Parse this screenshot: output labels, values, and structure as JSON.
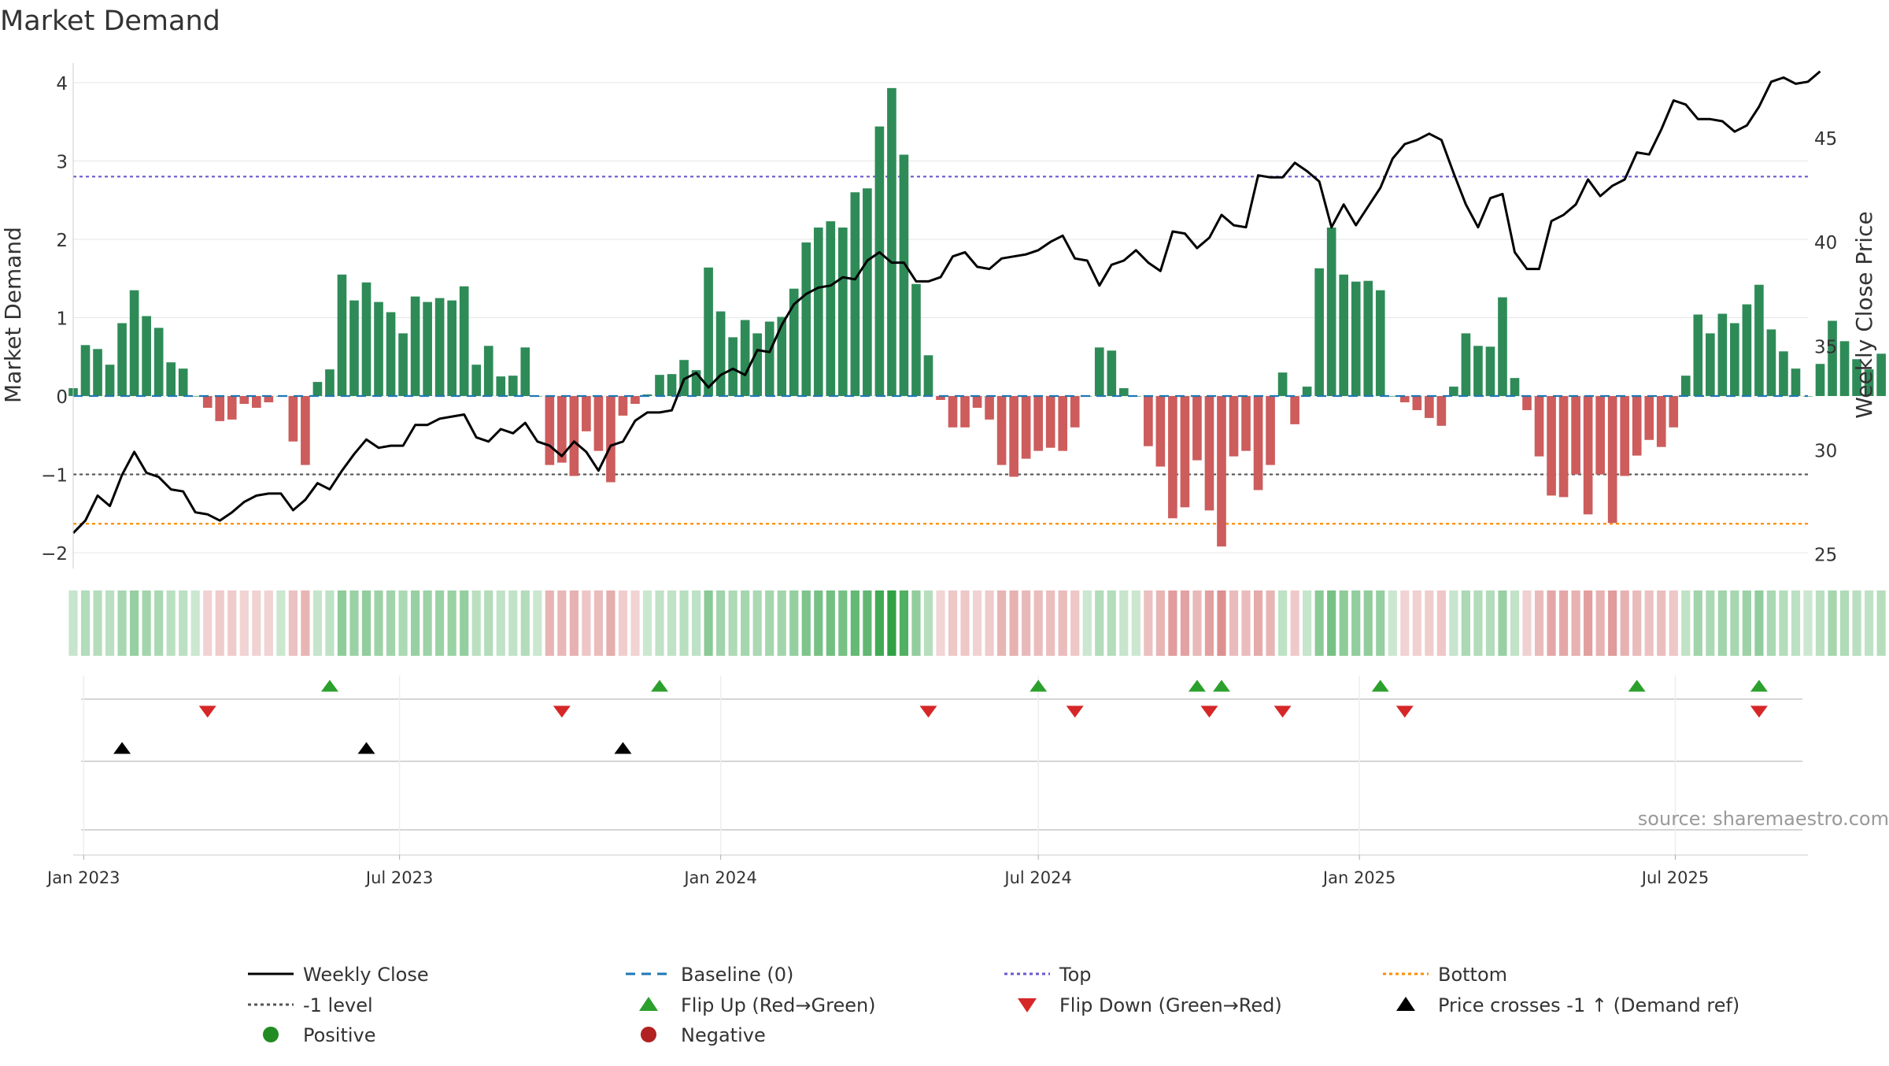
{
  "chart_data": {
    "type": "bar",
    "title": "Market Demand",
    "ylabel_left": "Market Demand",
    "ylabel_right": "Weekly Close Price",
    "source": "source: sharemaestro.com",
    "x_start": "2022-12-26",
    "x_end": "2025-09-15",
    "week_start": "2022-12-26",
    "ylim_left": [
      -2.2,
      4.25
    ],
    "ylim_right": [
      24.3,
      48.6
    ],
    "yticks_left": [
      {
        "v": -2,
        "label": "−2"
      },
      {
        "v": -1,
        "label": "−1"
      },
      {
        "v": 0,
        "label": "0"
      },
      {
        "v": 1,
        "label": "1"
      },
      {
        "v": 2,
        "label": "2"
      },
      {
        "v": 3,
        "label": "3"
      },
      {
        "v": 4,
        "label": "4"
      }
    ],
    "yticks_right": [
      {
        "v": 25,
        "label": "25"
      },
      {
        "v": 30,
        "label": "30"
      },
      {
        "v": 35,
        "label": "35"
      },
      {
        "v": 40,
        "label": "40"
      },
      {
        "v": 45,
        "label": "45"
      }
    ],
    "xticks": [
      {
        "date": "2023-01-01",
        "label": "Jan 2023"
      },
      {
        "date": "2023-07-01",
        "label": "Jul 2023"
      },
      {
        "date": "2024-01-01",
        "label": "Jan 2024"
      },
      {
        "date": "2024-07-01",
        "label": "Jul 2024"
      },
      {
        "date": "2025-01-01",
        "label": "Jan 2025"
      },
      {
        "date": "2025-07-01",
        "label": "Jul 2025"
      }
    ],
    "reference_lines": {
      "baseline": 0,
      "minus_one": -1,
      "top": 2.8,
      "bottom": -1.63
    },
    "colors": {
      "positive_bar": "#2e8b57",
      "negative_bar": "#cd5c5c",
      "close_line": "#000000",
      "baseline": "#1f77b4",
      "minus_one": "#555555",
      "top": "#6a5acd",
      "bottom": "#ff8c00",
      "flip_up": "#2ca02c",
      "flip_down": "#d62728",
      "cross": "#000000",
      "legend_positive": "#228b22",
      "legend_negative": "#b22222",
      "grid": "#e6e6e6"
    },
    "demand": [
      0.1,
      0.65,
      0.6,
      0.4,
      0.93,
      1.35,
      1.02,
      0.87,
      0.43,
      0.35,
      0.0,
      -0.15,
      -0.32,
      -0.3,
      -0.1,
      -0.15,
      -0.08,
      0.0,
      -0.58,
      -0.88,
      0.18,
      0.34,
      1.55,
      1.22,
      1.45,
      1.2,
      1.07,
      0.8,
      1.27,
      1.2,
      1.25,
      1.22,
      1.4,
      0.4,
      0.64,
      0.25,
      0.26,
      0.62,
      0.0,
      -0.88,
      -0.85,
      -1.02,
      -0.45,
      -0.7,
      -1.1,
      -0.25,
      -0.1,
      0.02,
      0.27,
      0.28,
      0.46,
      0.33,
      1.64,
      1.08,
      0.75,
      0.97,
      0.8,
      0.95,
      1.01,
      1.37,
      1.96,
      2.15,
      2.23,
      2.15,
      2.6,
      2.65,
      3.44,
      3.93,
      3.08,
      1.43,
      0.52,
      -0.05,
      -0.4,
      -0.4,
      -0.15,
      -0.3,
      -0.88,
      -1.03,
      -0.8,
      -0.7,
      -0.66,
      -0.7,
      -0.4,
      0.0,
      0.62,
      0.58,
      0.1,
      0.0,
      -0.64,
      -0.9,
      -1.56,
      -1.42,
      -0.82,
      -1.46,
      -1.92,
      -0.77,
      -0.7,
      -1.2,
      -0.88,
      0.3,
      -0.36,
      0.12,
      1.63,
      2.15,
      1.55,
      1.46,
      1.47,
      1.35,
      0.0,
      -0.08,
      -0.18,
      -0.28,
      -0.38,
      0.12,
      0.8,
      0.64,
      0.63,
      1.26,
      0.23,
      -0.18,
      -0.77,
      -1.27,
      -1.29,
      -1.0,
      -1.51,
      -1.0,
      -1.62,
      -1.02,
      -0.76,
      -0.56,
      -0.65,
      -0.4,
      0.26,
      1.04,
      0.8,
      1.05,
      0.93,
      1.17,
      1.42,
      0.85,
      0.57,
      0.35,
      0.0,
      0.41,
      0.96,
      0.7,
      0.47,
      0.34,
      0.54
    ],
    "close": [
      26.0,
      26.6,
      27.8,
      27.3,
      28.8,
      29.9,
      28.9,
      28.7,
      28.1,
      28.0,
      27.0,
      26.9,
      26.6,
      27.0,
      27.5,
      27.8,
      27.9,
      27.9,
      27.1,
      27.6,
      28.4,
      28.1,
      29.0,
      29.8,
      30.5,
      30.1,
      30.2,
      30.2,
      31.2,
      31.2,
      31.5,
      31.6,
      31.7,
      30.6,
      30.4,
      31.0,
      30.8,
      31.3,
      30.4,
      30.2,
      29.7,
      30.4,
      29.9,
      29.0,
      30.2,
      30.4,
      31.4,
      31.8,
      31.8,
      31.9,
      33.4,
      33.7,
      33.0,
      33.6,
      33.9,
      33.6,
      34.8,
      34.7,
      36.0,
      37.0,
      37.5,
      37.8,
      37.9,
      38.3,
      38.2,
      39.1,
      39.5,
      39.0,
      39.0,
      38.1,
      38.1,
      38.3,
      39.3,
      39.5,
      38.8,
      38.7,
      39.2,
      39.3,
      39.4,
      39.6,
      40.0,
      40.3,
      39.2,
      39.1,
      37.9,
      38.9,
      39.1,
      39.6,
      39.0,
      38.6,
      40.5,
      40.4,
      39.7,
      40.2,
      41.3,
      40.8,
      40.7,
      43.2,
      43.1,
      43.1,
      43.8,
      43.4,
      42.9,
      40.7,
      41.8,
      40.8,
      41.7,
      42.6,
      44.0,
      44.7,
      44.9,
      45.2,
      44.9,
      43.3,
      41.8,
      40.7,
      42.1,
      42.3,
      39.5,
      38.7,
      38.7,
      41.0,
      41.3,
      41.8,
      43.0,
      42.2,
      42.7,
      43.0,
      44.3,
      44.2,
      45.4,
      46.8,
      46.6,
      45.9,
      45.9,
      45.8,
      45.3,
      45.6,
      46.5,
      47.7,
      47.9,
      47.6,
      47.7,
      48.2
    ],
    "flip_up_dates": [
      "2023-05-22",
      "2023-11-27",
      "2024-07-01",
      "2024-09-30",
      "2024-10-14",
      "2025-01-13",
      "2025-06-09",
      "2025-08-18"
    ],
    "flip_down_dates": [
      "2023-03-13",
      "2023-10-02",
      "2024-04-29",
      "2024-07-22",
      "2024-10-07",
      "2024-11-18",
      "2025-01-27",
      "2025-08-18"
    ],
    "cross_up_dates": [
      "2023-01-23",
      "2023-06-12",
      "2023-11-06"
    ],
    "legend": [
      {
        "label": "Weekly Close",
        "kind": "line",
        "color": "#000000",
        "dash": ""
      },
      {
        "label": "Baseline (0)",
        "kind": "line",
        "color": "#1f77b4",
        "dash": "12,8"
      },
      {
        "label": "Top",
        "kind": "line",
        "color": "#6a5acd",
        "dash": "4,4"
      },
      {
        "label": "Bottom",
        "kind": "line",
        "color": "#ff8c00",
        "dash": "4,4"
      },
      {
        "label": "-1 level",
        "kind": "line",
        "color": "#555555",
        "dash": "4,4"
      },
      {
        "label": "Flip Up (Red→Green)",
        "kind": "triangle-up",
        "color": "#2ca02c"
      },
      {
        "label": "Flip Down (Green→Red)",
        "kind": "triangle-down",
        "color": "#d62728"
      },
      {
        "label": "Price crosses -1 ↑ (Demand ref)",
        "kind": "triangle-up",
        "color": "#000000"
      },
      {
        "label": "Positive",
        "kind": "circle",
        "color": "#228b22"
      },
      {
        "label": "Negative",
        "kind": "circle",
        "color": "#b22222"
      }
    ]
  }
}
